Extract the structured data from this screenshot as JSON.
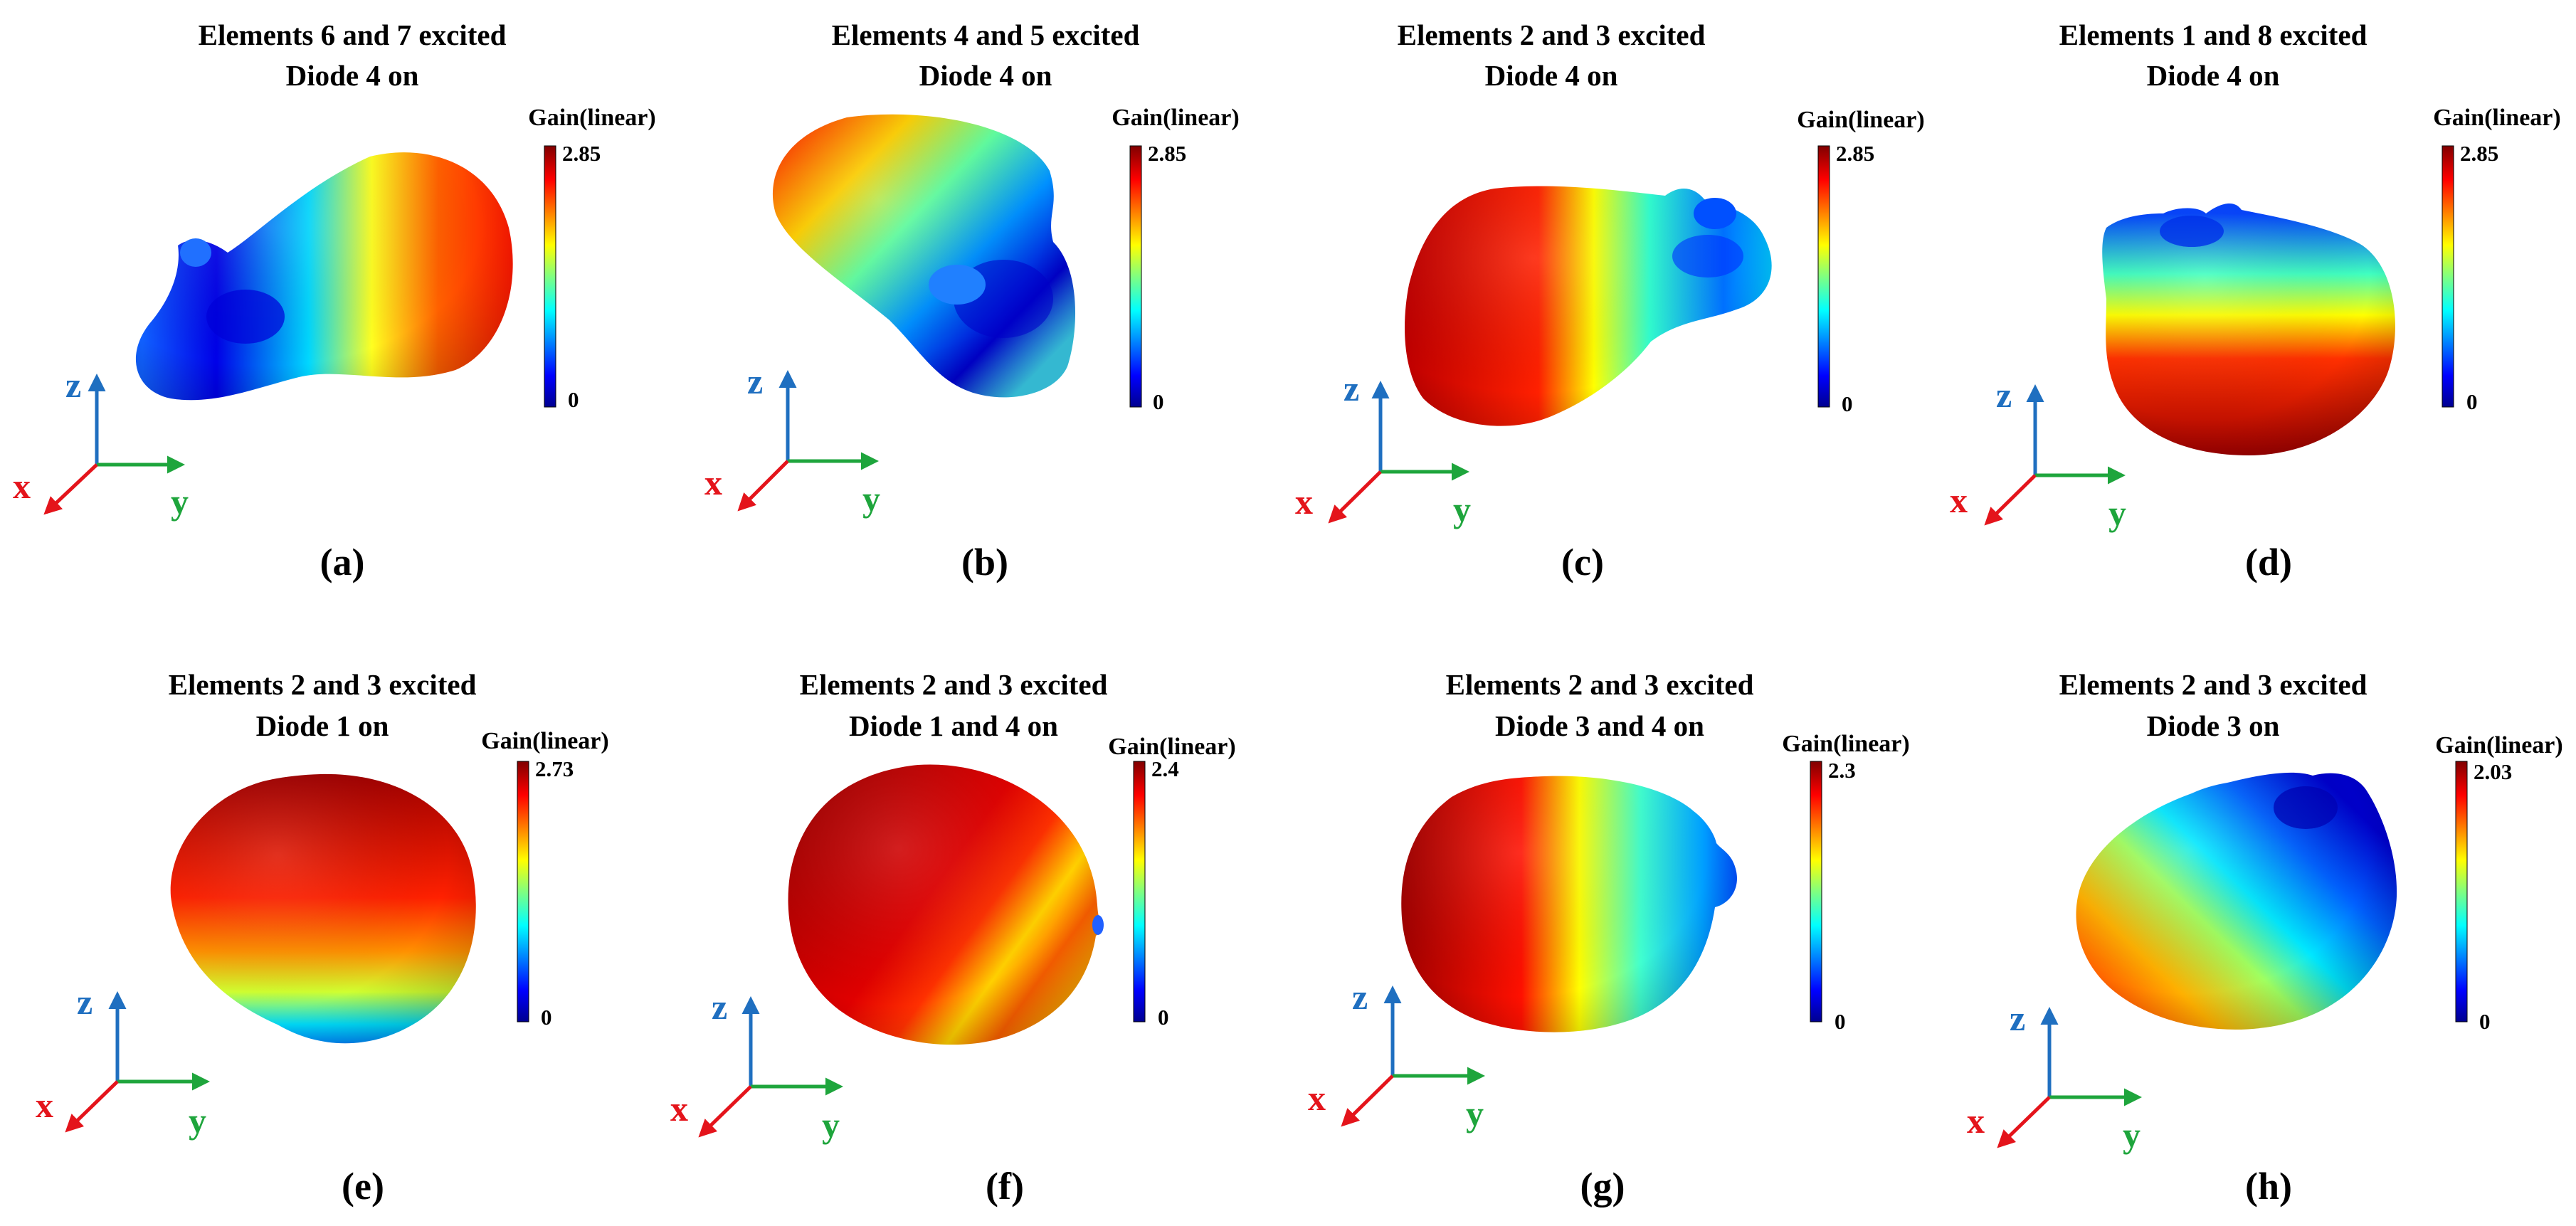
{
  "figure": {
    "colorbar_title": "Gain(linear)",
    "colormap": [
      "#00008f",
      "#0000ff",
      "#0080ff",
      "#00ffff",
      "#80ff80",
      "#ffff00",
      "#ff8000",
      "#ff0000",
      "#800000"
    ],
    "axes_colors": {
      "x": "#e4141b",
      "y": "#1ea53c",
      "z": "#1f6fc0"
    },
    "axes_labels": {
      "x": "x",
      "y": "y",
      "z": "z"
    },
    "panels": [
      {
        "id": "a",
        "caption": "(a)",
        "title1": "Elements 6 and 7 excited",
        "title2": "Diode 4 on",
        "cb_max": "2.85",
        "cb_min": "0"
      },
      {
        "id": "b",
        "caption": "(b)",
        "title1": "Elements 4 and 5 excited",
        "title2": "Diode 4 on",
        "cb_max": "2.85",
        "cb_min": "0"
      },
      {
        "id": "c",
        "caption": "(c)",
        "title1": "Elements 2 and 3 excited",
        "title2": "Diode 4 on",
        "cb_max": "2.85",
        "cb_min": "0"
      },
      {
        "id": "d",
        "caption": "(d)",
        "title1": "Elements 1 and 8 excited",
        "title2": "Diode 4 on",
        "cb_max": "2.85",
        "cb_min": "0"
      },
      {
        "id": "e",
        "caption": "(e)",
        "title1": "Elements 2 and 3 excited",
        "title2": "Diode 1 on",
        "cb_max": "2.73",
        "cb_min": "0"
      },
      {
        "id": "f",
        "caption": "(f)",
        "title1": "Elements 2 and 3 excited",
        "title2": "Diode 1 and 4 on",
        "cb_max": "2.4",
        "cb_min": "0"
      },
      {
        "id": "g",
        "caption": "(g)",
        "title1": "Elements 2 and 3 excited",
        "title2": "Diode 3 and 4 on",
        "cb_max": "2.3",
        "cb_min": "0"
      },
      {
        "id": "h",
        "caption": "(h)",
        "title1": "Elements 2 and 3 excited",
        "title2": "Diode 3 on",
        "cb_max": "2.03",
        "cb_min": "0"
      }
    ]
  }
}
